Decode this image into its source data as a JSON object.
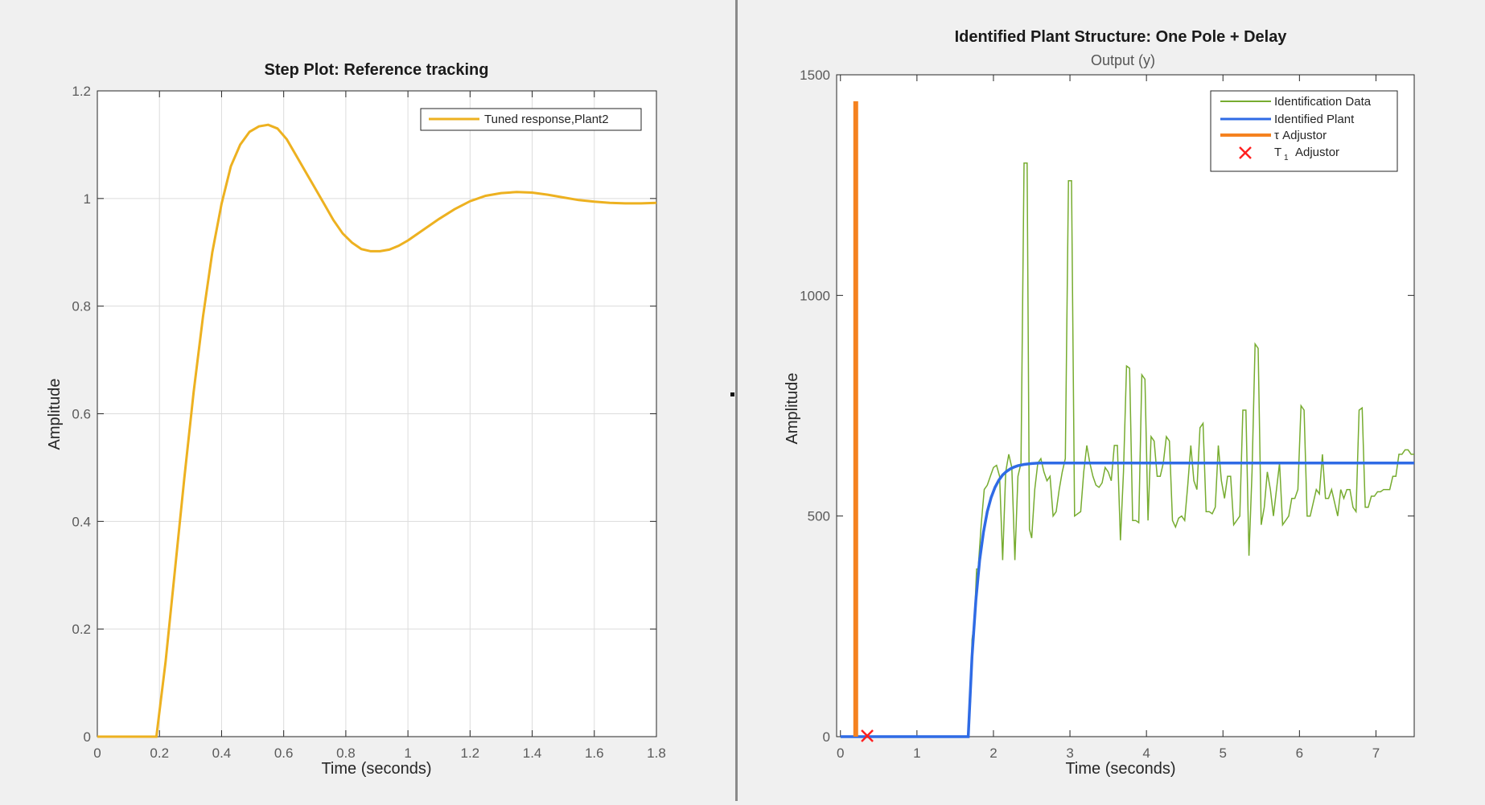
{
  "left_panel": {
    "title": "Step Plot: Reference tracking",
    "xlabel": "Time (seconds)",
    "ylabel": "Amplitude",
    "legend": [
      "Tuned response,Plant2"
    ],
    "x_ticks": [
      "0",
      "0.2",
      "0.4",
      "0.6",
      "0.8",
      "1",
      "1.2",
      "1.4",
      "1.6",
      "1.8"
    ],
    "y_ticks": [
      "0",
      "0.2",
      "0.4",
      "0.6",
      "0.8",
      "1",
      "1.2"
    ]
  },
  "right_panel": {
    "title": "Identified Plant Structure: One Pole + Delay",
    "subtitle": "Output (y)",
    "xlabel": "Time (seconds)",
    "ylabel": "Amplitude",
    "legend": [
      "Identification Data",
      "Identified Plant",
      "τ Adjustor",
      "T",
      "Adjustor"
    ],
    "x_ticks": [
      "0",
      "1",
      "2",
      "3",
      "4",
      "5",
      "6",
      "7"
    ],
    "y_ticks": [
      "0",
      "500",
      "1000",
      "1500"
    ]
  },
  "colors": {
    "tuned": "#EDB120",
    "ident_data": "#77AC30",
    "ident_plant": "#2F6BE5",
    "tau": "#F5821F",
    "t1": "#FF2020"
  },
  "chart_data": [
    {
      "type": "line",
      "title": "Step Plot: Reference tracking",
      "xlabel": "Time (seconds)",
      "ylabel": "Amplitude",
      "xlim": [
        0,
        1.8
      ],
      "ylim": [
        0,
        1.2
      ],
      "grid": true,
      "legend_position": "top-right",
      "series": [
        {
          "name": "Tuned response,Plant2",
          "x": [
            0,
            0.19,
            0.22,
            0.25,
            0.28,
            0.31,
            0.34,
            0.37,
            0.4,
            0.43,
            0.46,
            0.49,
            0.52,
            0.55,
            0.58,
            0.61,
            0.64,
            0.67,
            0.7,
            0.73,
            0.76,
            0.79,
            0.82,
            0.85,
            0.88,
            0.91,
            0.94,
            0.97,
            1.0,
            1.05,
            1.1,
            1.15,
            1.2,
            1.25,
            1.3,
            1.35,
            1.4,
            1.45,
            1.5,
            1.55,
            1.6,
            1.65,
            1.7,
            1.75,
            1.8
          ],
          "y": [
            0,
            0,
            0.14,
            0.31,
            0.48,
            0.64,
            0.78,
            0.9,
            0.99,
            1.06,
            1.1,
            1.124,
            1.134,
            1.137,
            1.13,
            1.11,
            1.08,
            1.05,
            1.02,
            0.99,
            0.96,
            0.935,
            0.918,
            0.906,
            0.902,
            0.902,
            0.905,
            0.912,
            0.922,
            0.942,
            0.962,
            0.98,
            0.995,
            1.005,
            1.01,
            1.012,
            1.011,
            1.007,
            1.002,
            0.997,
            0.994,
            0.992,
            0.991,
            0.991,
            0.992
          ]
        }
      ]
    },
    {
      "type": "line",
      "title": "Identified Plant Structure: One Pole + Delay",
      "subtitle": "Output (y)",
      "xlabel": "Time (seconds)",
      "ylabel": "Amplitude",
      "xlim": [
        -0.05,
        7.5
      ],
      "ylim": [
        0,
        1500
      ],
      "grid": false,
      "legend_position": "top-right",
      "series": [
        {
          "name": "Identification Data",
          "x": [
            0,
            1.67,
            1.7,
            1.72,
            1.75,
            1.78,
            1.8,
            1.84,
            1.88,
            1.92,
            1.96,
            2.0,
            2.04,
            2.08,
            2.12,
            2.16,
            2.2,
            2.24,
            2.28,
            2.32,
            2.36,
            2.4,
            2.44,
            2.47,
            2.5,
            2.54,
            2.58,
            2.62,
            2.66,
            2.7,
            2.74,
            2.78,
            2.82,
            2.86,
            2.9,
            2.94,
            2.98,
            3.02,
            3.06,
            3.1,
            3.14,
            3.18,
            3.22,
            3.26,
            3.3,
            3.34,
            3.38,
            3.42,
            3.46,
            3.5,
            3.54,
            3.58,
            3.62,
            3.66,
            3.7,
            3.74,
            3.78,
            3.82,
            3.86,
            3.9,
            3.94,
            3.98,
            4.02,
            4.06,
            4.1,
            4.14,
            4.18,
            4.22,
            4.26,
            4.3,
            4.34,
            4.38,
            4.42,
            4.46,
            4.5,
            4.54,
            4.58,
            4.62,
            4.66,
            4.7,
            4.74,
            4.78,
            4.82,
            4.86,
            4.9,
            4.94,
            4.98,
            5.02,
            5.06,
            5.1,
            5.14,
            5.18,
            5.22,
            5.26,
            5.3,
            5.34,
            5.38,
            5.42,
            5.46,
            5.5,
            5.54,
            5.58,
            5.62,
            5.66,
            5.7,
            5.74,
            5.78,
            5.82,
            5.86,
            5.9,
            5.94,
            5.98,
            6.02,
            6.06,
            6.1,
            6.14,
            6.18,
            6.22,
            6.26,
            6.3,
            6.34,
            6.38,
            6.42,
            6.46,
            6.5,
            6.54,
            6.58,
            6.62,
            6.66,
            6.7,
            6.74,
            6.78,
            6.82,
            6.86,
            6.9,
            6.94,
            6.98,
            7.02,
            7.06,
            7.1,
            7.14,
            7.18,
            7.22,
            7.26,
            7.3,
            7.34,
            7.38,
            7.42,
            7.46,
            7.5
          ],
          "y": [
            0,
            0,
            80,
            220,
            260,
            380,
            380,
            480,
            560,
            570,
            590,
            610,
            615,
            590,
            400,
            600,
            640,
            610,
            400,
            590,
            620,
            1300,
            1300,
            470,
            450,
            560,
            620,
            630,
            600,
            580,
            590,
            500,
            510,
            560,
            600,
            630,
            1260,
            1260,
            500,
            505,
            510,
            600,
            660,
            620,
            590,
            570,
            565,
            575,
            610,
            600,
            580,
            660,
            660,
            445,
            600,
            840,
            835,
            490,
            490,
            485,
            820,
            810,
            490,
            680,
            670,
            590,
            590,
            620,
            680,
            670,
            490,
            475,
            495,
            500,
            490,
            570,
            660,
            580,
            560,
            700,
            710,
            510,
            510,
            505,
            520,
            660,
            580,
            540,
            590,
            590,
            480,
            490,
            500,
            740,
            740,
            410,
            600,
            890,
            880,
            480,
            520,
            600,
            560,
            500,
            560,
            620,
            480,
            490,
            500,
            540,
            540,
            560,
            750,
            740,
            500,
            500,
            530,
            560,
            550,
            640,
            540,
            540,
            560,
            530,
            500,
            560,
            540,
            560,
            560,
            520,
            510,
            740,
            745,
            520,
            520,
            545,
            545,
            555,
            555,
            560,
            560,
            560,
            590,
            590,
            640,
            640,
            650,
            650,
            640,
            640
          ]
        },
        {
          "name": "Identified Plant",
          "x": [
            0,
            1.67,
            1.72,
            1.77,
            1.82,
            1.87,
            1.92,
            1.97,
            2.02,
            2.07,
            2.12,
            2.17,
            2.22,
            2.27,
            2.32,
            2.4,
            2.5,
            2.6,
            7.5
          ],
          "y": [
            0,
            0,
            181,
            309,
            400,
            464,
            510,
            542,
            565,
            581,
            593,
            601,
            607,
            611,
            614,
            617,
            619,
            620,
            620
          ]
        },
        {
          "name": "τ Adjustor",
          "x": [
            0.2,
            0.2
          ],
          "y": [
            0,
            1440
          ]
        },
        {
          "name": "T1 Adjustor",
          "x": [
            0.35
          ],
          "y": [
            0
          ]
        }
      ]
    }
  ]
}
